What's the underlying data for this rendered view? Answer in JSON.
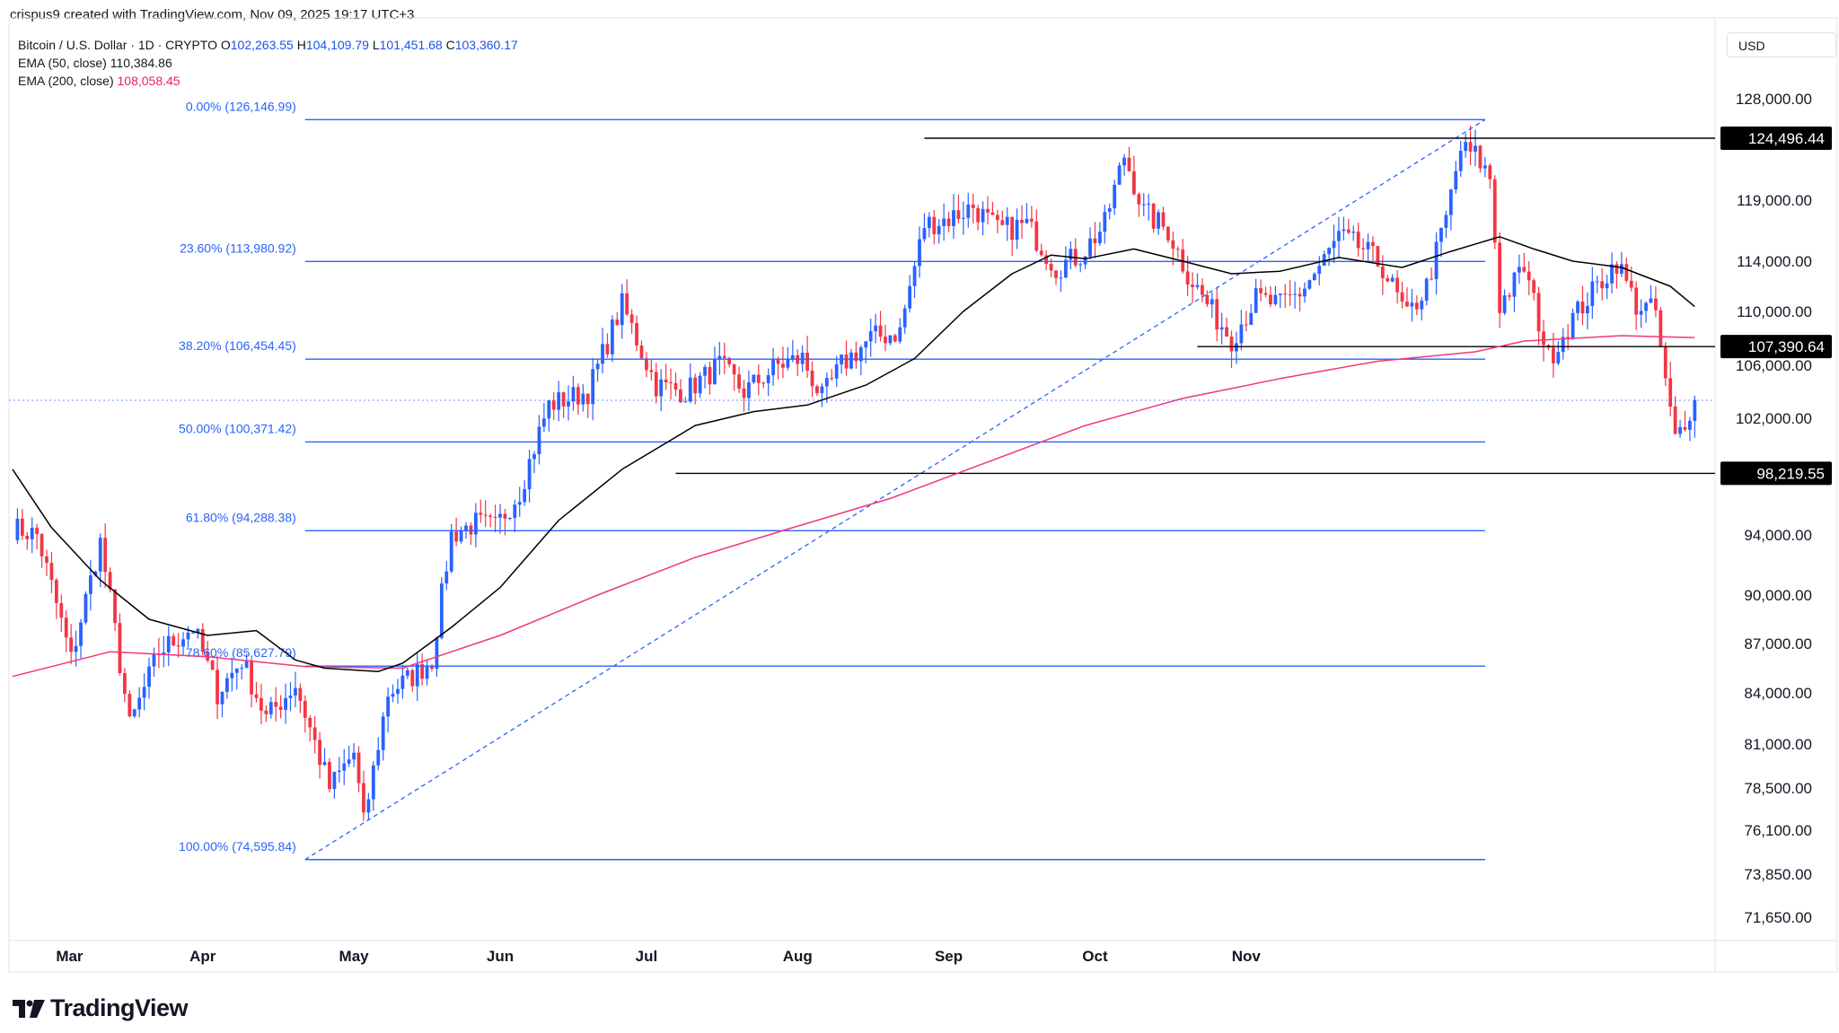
{
  "header": {
    "attribution": "crispus9 created with TradingView.com, Nov 09, 2025 19:17 UTC+3"
  },
  "legend": {
    "symbol": "Bitcoin / U.S. Dollar · 1D · CRYPTO",
    "open_label": "O",
    "open": "102,263.55",
    "high_label": "H",
    "high": "104,109.79",
    "low_label": "L",
    "low": "101,451.68",
    "close_label": "C",
    "close": "103,360.17",
    "ema50_label": "EMA (50, close)",
    "ema50_value": "110,384.86",
    "ema200_label": "EMA (200, close)",
    "ema200_value": "108,058.45"
  },
  "currency": "USD",
  "brand": "TradingView",
  "colors": {
    "up": "#2962ff",
    "down": "#f23645",
    "ema50": "#000000",
    "ema200": "#f23678",
    "fib": "#2962ff",
    "level": "#000000",
    "axis_text": "#131722"
  },
  "chart_data": {
    "type": "candlestick",
    "title": "Bitcoin / U.S. Dollar · 1D · CRYPTO",
    "x_ticks": [
      "Mar",
      "Apr",
      "May",
      "Jun",
      "Jul",
      "Aug",
      "Sep",
      "Oct",
      "Nov"
    ],
    "y_ticks": [
      "128,000.00",
      "119,000.00",
      "114,000.00",
      "110,000.00",
      "106,000.00",
      "102,000.00",
      "94,000.00",
      "90,000.00",
      "87,000.00",
      "84,000.00",
      "81,000.00",
      "78,500.00",
      "76,100.00",
      "73,850.00",
      "71,650.00"
    ],
    "y_range": [
      70000,
      131000
    ],
    "price_labels": [
      {
        "text": "124,496.44",
        "value": 124496.44
      },
      {
        "text": "107,390.64",
        "value": 107390.64
      },
      {
        "text": "98,219.55",
        "value": 98219.55
      }
    ],
    "fibonacci": [
      {
        "label": "0.00% (126,146.99)",
        "value": 126146.99
      },
      {
        "label": "23.60% (113,980.92)",
        "value": 113980.92
      },
      {
        "label": "38.20% (106,454.45)",
        "value": 106454.45
      },
      {
        "label": "50.00% (100,371.42)",
        "value": 100371.42
      },
      {
        "label": "61.80% (94,288.38)",
        "value": 94288.38
      },
      {
        "label": "78.60% (85,627.79)",
        "value": 85627.79
      },
      {
        "label": "100.00% (74,595.84)",
        "value": 74595.84
      }
    ],
    "current_price": 103360.17,
    "anchors": [
      [
        0,
        94500
      ],
      [
        5,
        94000
      ],
      [
        12,
        86000
      ],
      [
        18,
        93500
      ],
      [
        24,
        82000
      ],
      [
        30,
        86500
      ],
      [
        37,
        88000
      ],
      [
        42,
        84000
      ],
      [
        47,
        86000
      ],
      [
        52,
        82500
      ],
      [
        58,
        84500
      ],
      [
        65,
        78500
      ],
      [
        70,
        80500
      ],
      [
        72,
        76500
      ],
      [
        77,
        84000
      ],
      [
        82,
        85000
      ],
      [
        86,
        86000
      ],
      [
        90,
        94000
      ],
      [
        95,
        94800
      ],
      [
        99,
        94500
      ],
      [
        104,
        97000
      ],
      [
        110,
        103000
      ],
      [
        118,
        104000
      ],
      [
        125,
        110500
      ],
      [
        132,
        104500
      ],
      [
        138,
        104000
      ],
      [
        145,
        106000
      ],
      [
        150,
        104000
      ],
      [
        157,
        106000
      ],
      [
        162,
        106500
      ],
      [
        166,
        103500
      ],
      [
        170,
        106000
      ],
      [
        176,
        108000
      ],
      [
        182,
        108500
      ],
      [
        187,
        117000
      ],
      [
        192,
        117500
      ],
      [
        197,
        118500
      ],
      [
        202,
        116500
      ],
      [
        208,
        117000
      ],
      [
        214,
        113500
      ],
      [
        219,
        114500
      ],
      [
        224,
        117000
      ],
      [
        228,
        123000
      ],
      [
        232,
        118000
      ],
      [
        237,
        116500
      ],
      [
        241,
        113000
      ],
      [
        246,
        110000
      ],
      [
        250,
        108000
      ],
      [
        255,
        111000
      ],
      [
        260,
        110500
      ],
      [
        264,
        111500
      ],
      [
        268,
        113500
      ],
      [
        272,
        116000
      ],
      [
        277,
        115000
      ],
      [
        281,
        113500
      ],
      [
        286,
        109500
      ],
      [
        290,
        112000
      ],
      [
        294,
        117500
      ],
      [
        297,
        123500
      ],
      [
        300,
        123000
      ],
      [
        303,
        121000
      ],
      [
        305,
        110500
      ],
      [
        310,
        113500
      ],
      [
        315,
        106500
      ],
      [
        320,
        109500
      ],
      [
        325,
        112000
      ],
      [
        329,
        114000
      ],
      [
        333,
        110500
      ],
      [
        337,
        110000
      ],
      [
        339,
        104500
      ],
      [
        341,
        100500
      ],
      [
        345,
        103360
      ]
    ],
    "ema50_points": [
      [
        0,
        98500
      ],
      [
        8,
        94500
      ],
      [
        18,
        91000
      ],
      [
        28,
        88500
      ],
      [
        40,
        87500
      ],
      [
        50,
        87800
      ],
      [
        58,
        86000
      ],
      [
        64,
        85500
      ],
      [
        75,
        85300
      ],
      [
        80,
        85800
      ],
      [
        90,
        88000
      ],
      [
        100,
        90500
      ],
      [
        112,
        95000
      ],
      [
        125,
        98500
      ],
      [
        140,
        101500
      ],
      [
        152,
        102500
      ],
      [
        163,
        103000
      ],
      [
        175,
        104500
      ],
      [
        185,
        106500
      ],
      [
        195,
        110000
      ],
      [
        205,
        113000
      ],
      [
        213,
        114500
      ],
      [
        220,
        114200
      ],
      [
        230,
        115000
      ],
      [
        240,
        114000
      ],
      [
        250,
        113000
      ],
      [
        260,
        113200
      ],
      [
        272,
        114300
      ],
      [
        285,
        113500
      ],
      [
        295,
        114800
      ],
      [
        305,
        116000
      ],
      [
        312,
        115000
      ],
      [
        320,
        114000
      ],
      [
        330,
        113500
      ],
      [
        340,
        112000
      ],
      [
        345,
        110385
      ]
    ],
    "ema200_points": [
      [
        0,
        85000
      ],
      [
        20,
        86500
      ],
      [
        40,
        86200
      ],
      [
        60,
        85600
      ],
      [
        80,
        85500
      ],
      [
        100,
        87500
      ],
      [
        120,
        90000
      ],
      [
        140,
        92500
      ],
      [
        160,
        94500
      ],
      [
        180,
        96500
      ],
      [
        200,
        99000
      ],
      [
        220,
        101500
      ],
      [
        240,
        103500
      ],
      [
        260,
        105000
      ],
      [
        280,
        106300
      ],
      [
        300,
        107000
      ],
      [
        310,
        107800
      ],
      [
        320,
        108000
      ],
      [
        330,
        108200
      ],
      [
        340,
        108100
      ],
      [
        345,
        108058
      ]
    ],
    "fib_trend": {
      "from": [
        60,
        74595.84
      ],
      "to": [
        302,
        126146.99
      ]
    },
    "horizontal_levels": [
      {
        "value": 124496.44,
        "from_day": 187
      },
      {
        "value": 107390.64,
        "from_day": 243
      },
      {
        "value": 98219.55,
        "from_day": 136
      }
    ]
  }
}
